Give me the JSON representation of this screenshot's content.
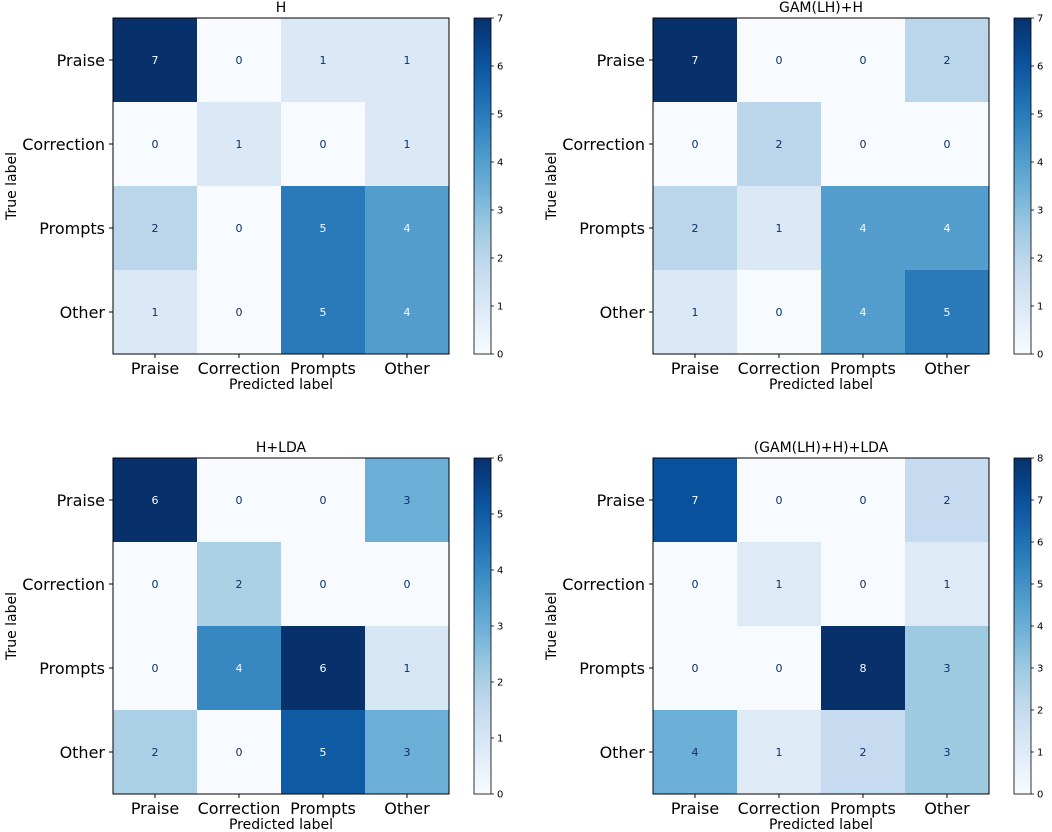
{
  "chart_data": [
    {
      "type": "heatmap",
      "title": "H",
      "xlabel": "Predicted label",
      "ylabel": "True label",
      "labels": [
        "Praise",
        "Correction",
        "Prompts",
        "Other"
      ],
      "matrix": [
        [
          7,
          0,
          1,
          1
        ],
        [
          0,
          1,
          0,
          1
        ],
        [
          2,
          0,
          5,
          4
        ],
        [
          1,
          0,
          5,
          4
        ]
      ],
      "vmin": 0,
      "vmax": 7,
      "colorbar_ticks": [
        0,
        1,
        2,
        3,
        4,
        5,
        6,
        7
      ],
      "colormap": "Blues"
    },
    {
      "type": "heatmap",
      "title": "GAM(LH)+H",
      "xlabel": "Predicted label",
      "ylabel": "True label",
      "labels": [
        "Praise",
        "Correction",
        "Prompts",
        "Other"
      ],
      "matrix": [
        [
          7,
          0,
          0,
          2
        ],
        [
          0,
          2,
          0,
          0
        ],
        [
          2,
          1,
          4,
          4
        ],
        [
          1,
          0,
          4,
          5
        ]
      ],
      "vmin": 0,
      "vmax": 7,
      "colorbar_ticks": [
        0,
        1,
        2,
        3,
        4,
        5,
        6,
        7
      ],
      "colormap": "Blues"
    },
    {
      "type": "heatmap",
      "title": "H+LDA",
      "xlabel": "Predicted label",
      "ylabel": "True label",
      "labels": [
        "Praise",
        "Correction",
        "Prompts",
        "Other"
      ],
      "matrix": [
        [
          6,
          0,
          0,
          3
        ],
        [
          0,
          2,
          0,
          0
        ],
        [
          0,
          4,
          6,
          1
        ],
        [
          2,
          0,
          5,
          3
        ]
      ],
      "vmin": 0,
      "vmax": 6,
      "colorbar_ticks": [
        0,
        1,
        2,
        3,
        4,
        5,
        6
      ],
      "colormap": "Blues"
    },
    {
      "type": "heatmap",
      "title": "(GAM(LH)+H)+LDA",
      "xlabel": "Predicted label",
      "ylabel": "True label",
      "labels": [
        "Praise",
        "Correction",
        "Prompts",
        "Other"
      ],
      "matrix": [
        [
          7,
          0,
          0,
          2
        ],
        [
          0,
          1,
          0,
          1
        ],
        [
          0,
          0,
          8,
          3
        ],
        [
          4,
          1,
          2,
          3
        ]
      ],
      "vmin": 0,
      "vmax": 8,
      "colorbar_ticks": [
        0,
        1,
        2,
        3,
        4,
        5,
        6,
        7,
        8
      ],
      "colormap": "Blues"
    }
  ]
}
